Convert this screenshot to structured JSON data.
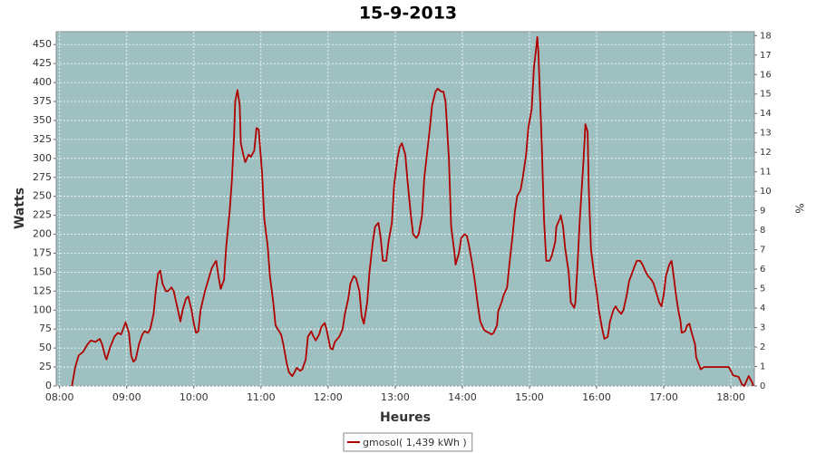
{
  "chart_data": {
    "type": "line",
    "title": "15-9-2013",
    "x_label": "Heures",
    "y_label": "Watts",
    "y2_label": "%",
    "x": [
      "08:11",
      "08:14",
      "08:17",
      "08:21",
      "08:25",
      "08:28",
      "08:32",
      "08:36",
      "08:38",
      "08:41",
      "08:42",
      "08:45",
      "08:49",
      "08:52",
      "08:55",
      "08:58",
      "08:59",
      "09:02",
      "09:04",
      "09:06",
      "09:08",
      "09:11",
      "09:14",
      "09:16",
      "09:19",
      "09:21",
      "09:24",
      "09:26",
      "09:28",
      "09:30",
      "09:32",
      "09:35",
      "09:37",
      "09:40",
      "09:42",
      "09:45",
      "09:48",
      "09:50",
      "09:53",
      "09:55",
      "09:58",
      "10:00",
      "10:02",
      "10:04",
      "10:06",
      "10:10",
      "10:13",
      "10:16",
      "10:19",
      "10:20",
      "10:22",
      "10:24",
      "10:27",
      "10:29",
      "10:32",
      "10:34",
      "10:36",
      "10:37",
      "10:39",
      "10:41",
      "10:42",
      "10:45",
      "10:46",
      "10:49",
      "10:51",
      "10:54",
      "10:56",
      "10:58",
      "11:01",
      "11:03",
      "11:06",
      "11:08",
      "11:11",
      "11:13",
      "11:15",
      "11:18",
      "11:20",
      "11:23",
      "11:25",
      "11:28",
      "11:30",
      "11:32",
      "11:35",
      "11:37",
      "11:40",
      "11:42",
      "11:45",
      "11:47",
      "11:49",
      "11:52",
      "11:54",
      "11:57",
      "11:59",
      "12:02",
      "12:04",
      "12:06",
      "12:10",
      "12:13",
      "12:15",
      "12:18",
      "12:20",
      "12:23",
      "12:25",
      "12:28",
      "12:30",
      "12:32",
      "12:35",
      "12:37",
      "12:40",
      "12:42",
      "12:45",
      "12:47",
      "12:49",
      "12:52",
      "12:54",
      "12:57",
      "12:59",
      "13:02",
      "13:04",
      "13:06",
      "13:09",
      "13:11",
      "13:14",
      "13:16",
      "13:19",
      "13:21",
      "13:24",
      "13:26",
      "13:28",
      "13:31",
      "13:33",
      "13:36",
      "13:38",
      "13:41",
      "13:43",
      "13:45",
      "13:48",
      "13:50",
      "13:53",
      "13:54",
      "13:57",
      "13:59",
      "14:02",
      "14:04",
      "14:06",
      "14:09",
      "14:11",
      "14:14",
      "14:16",
      "14:19",
      "14:21",
      "14:24",
      "14:26",
      "14:28",
      "14:31",
      "14:32",
      "14:35",
      "14:37",
      "14:40",
      "14:42",
      "14:45",
      "14:47",
      "14:49",
      "14:52",
      "14:54",
      "14:57",
      "14:59",
      "15:02",
      "15:04",
      "15:06",
      "15:07",
      "15:08",
      "15:11",
      "15:13",
      "15:15",
      "15:18",
      "15:20",
      "15:23",
      "15:24",
      "15:27",
      "15:28",
      "15:30",
      "15:32",
      "15:35",
      "15:37",
      "15:40",
      "15:41",
      "15:43",
      "15:45",
      "15:48",
      "15:50",
      "15:52",
      "15:53",
      "15:55",
      "15:58",
      "16:00",
      "16:02",
      "16:05",
      "16:07",
      "16:10",
      "16:12",
      "16:15",
      "16:17",
      "16:19",
      "16:22",
      "16:24",
      "16:27",
      "16:29",
      "16:32",
      "16:34",
      "16:36",
      "16:39",
      "16:41",
      "16:44",
      "16:46",
      "16:49",
      "16:51",
      "16:54",
      "16:56",
      "16:58",
      "17:00",
      "17:02",
      "17:05",
      "17:07",
      "17:08",
      "17:11",
      "17:13",
      "17:15",
      "17:16",
      "17:19",
      "17:21",
      "17:23",
      "17:25",
      "17:28",
      "17:29",
      "17:31",
      "17:33",
      "17:36",
      "17:43",
      "17:51",
      "17:58",
      "18:00",
      "18:02",
      "18:07",
      "18:10",
      "18:12",
      "18:15",
      "18:16",
      "18:19",
      "18:20"
    ],
    "series": [
      {
        "name": "gmosol( 1,439 kWh )",
        "color": "#b00000",
        "values": [
          0,
          25,
          40,
          45,
          55,
          60,
          58,
          62,
          55,
          38,
          35,
          50,
          65,
          70,
          68,
          80,
          84,
          70,
          40,
          32,
          35,
          55,
          68,
          72,
          70,
          75,
          95,
          125,
          148,
          152,
          135,
          125,
          125,
          130,
          125,
          105,
          85,
          100,
          115,
          118,
          100,
          82,
          70,
          72,
          100,
          125,
          140,
          155,
          163,
          165,
          145,
          128,
          140,
          185,
          230,
          270,
          330,
          375,
          390,
          370,
          320,
          300,
          295,
          305,
          302,
          310,
          340,
          338,
          280,
          220,
          185,
          145,
          110,
          80,
          75,
          68,
          55,
          30,
          18,
          13,
          18,
          24,
          20,
          22,
          35,
          65,
          72,
          65,
          60,
          68,
          78,
          83,
          72,
          50,
          48,
          58,
          65,
          75,
          95,
          115,
          135,
          145,
          142,
          125,
          92,
          82,
          110,
          150,
          190,
          210,
          215,
          195,
          165,
          165,
          190,
          215,
          265,
          300,
          315,
          320,
          305,
          270,
          225,
          200,
          195,
          200,
          225,
          275,
          300,
          340,
          370,
          388,
          392,
          388,
          388,
          375,
          300,
          210,
          175,
          160,
          175,
          195,
          200,
          198,
          185,
          160,
          140,
          105,
          85,
          75,
          72,
          70,
          68,
          70,
          80,
          98,
          110,
          120,
          130,
          160,
          200,
          230,
          250,
          258,
          275,
          305,
          340,
          365,
          420,
          445,
          460,
          440,
          320,
          220,
          165,
          165,
          172,
          190,
          210,
          220,
          225,
          210,
          180,
          150,
          110,
          103,
          110,
          160,
          220,
          290,
          345,
          335,
          260,
          180,
          145,
          125,
          100,
          75,
          62,
          65,
          85,
          100,
          105,
          100,
          95,
          100,
          120,
          138,
          150,
          158,
          165,
          165,
          160,
          150,
          145,
          140,
          135,
          120,
          110,
          105,
          120,
          145,
          160,
          165,
          155,
          120,
          100,
          85,
          70,
          72,
          80,
          82,
          70,
          55,
          38,
          30,
          22,
          25,
          25,
          25,
          25,
          20,
          14,
          12,
          2,
          0,
          10,
          13,
          5,
          0
        ]
      }
    ],
    "xlim": [
      "07:57",
      "18:21"
    ],
    "xticks": [
      "08:00",
      "09:00",
      "10:00",
      "11:00",
      "12:00",
      "13:00",
      "14:00",
      "15:00",
      "16:00",
      "17:00",
      "18:00"
    ],
    "ylim": [
      0,
      467
    ],
    "yticks": [
      0,
      25,
      50,
      75,
      100,
      125,
      150,
      175,
      200,
      225,
      250,
      275,
      300,
      325,
      350,
      375,
      400,
      425,
      450
    ],
    "y2lim": [
      0,
      18.2
    ],
    "y2ticks": [
      0,
      1,
      2,
      3,
      4,
      5,
      6,
      7,
      8,
      9,
      10,
      11,
      12,
      13,
      14,
      15,
      16,
      17,
      18
    ],
    "grid": true,
    "background": "#9ec0c0",
    "legend": "bottom"
  }
}
